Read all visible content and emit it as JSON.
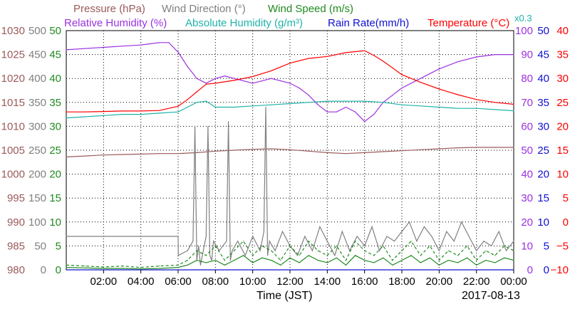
{
  "chart_data": {
    "type": "line",
    "legend": {
      "row1": [
        {
          "key": "pressure",
          "label": "Pressure (hPa)",
          "color": "#9b5a5a"
        },
        {
          "key": "wind_dir",
          "label": "Wind Direction (°)",
          "color": "#808080"
        },
        {
          "key": "wind_speed",
          "label": "Wind Speed (m/s)",
          "color": "#1f8a1f"
        }
      ],
      "row2": [
        {
          "key": "rh",
          "label": "Relative Humidity (%)",
          "color": "#9b30e0"
        },
        {
          "key": "ah",
          "label": "Absolute Humidity (g/m³)",
          "color": "#20b2aa"
        },
        {
          "key": "rain",
          "label": "Rain Rate(mm/h)",
          "color": "#1010d0"
        },
        {
          "key": "temp",
          "label": "Temperature (°C)",
          "color": "#ff0000"
        }
      ],
      "ah_multiplier": "x0.3"
    },
    "xlabel": "Time (JST)",
    "date_label": "2017-08-13",
    "x_ticks": [
      "02:00",
      "04:00",
      "06:00",
      "08:00",
      "10:00",
      "12:00",
      "14:00",
      "16:00",
      "18:00",
      "20:00",
      "22:00",
      "00:00"
    ],
    "x_range_hours": [
      0,
      24
    ],
    "axes": {
      "pressure": {
        "ticks": [
          "1030",
          "1025",
          "1020",
          "1015",
          "1010",
          "1005",
          "1000",
          "995",
          "990",
          "985",
          "980"
        ],
        "range": [
          980,
          1030
        ]
      },
      "wind_dir": {
        "ticks": [
          "500",
          "450",
          "400",
          "350",
          "300",
          "250",
          "200",
          "150",
          "100",
          "50",
          "0"
        ],
        "range": [
          0,
          500
        ]
      },
      "wind_speed": {
        "ticks": [
          "50",
          "45",
          "40",
          "35",
          "30",
          "25",
          "20",
          "15",
          "10",
          "5",
          "0"
        ],
        "range": [
          0,
          50
        ]
      },
      "rh": {
        "ticks": [
          "100",
          "90",
          "80",
          "70",
          "60",
          "50",
          "40",
          "30",
          "20",
          "10",
          "0"
        ],
        "range": [
          0,
          100
        ]
      },
      "rain": {
        "ticks": [
          "50",
          "45",
          "40",
          "35",
          "30",
          "25",
          "20",
          "15",
          "10",
          "5",
          "0"
        ],
        "range": [
          0,
          50
        ]
      },
      "temp": {
        "ticks": [
          "40",
          "35",
          "30",
          "25",
          "20",
          "15",
          "10",
          "5",
          "0",
          "−5",
          "−10"
        ],
        "range": [
          -10,
          40
        ]
      }
    },
    "series": [
      {
        "key": "pressure",
        "color": "#9b5a5a",
        "scale": "pressure",
        "dash": "",
        "x": [
          0,
          1,
          2,
          3,
          4,
          5,
          6,
          7,
          8,
          9,
          10,
          11,
          12,
          13,
          14,
          15,
          16,
          17,
          18,
          19,
          20,
          21,
          22,
          23,
          24
        ],
        "y": [
          1003.6,
          1003.8,
          1004.0,
          1004.1,
          1004.2,
          1004.3,
          1004.3,
          1004.5,
          1004.8,
          1005.0,
          1005.2,
          1005.3,
          1005.1,
          1004.8,
          1004.5,
          1004.3,
          1004.5,
          1004.7,
          1004.9,
          1005.1,
          1005.3,
          1005.5,
          1005.6,
          1005.6,
          1005.6
        ]
      },
      {
        "key": "rh",
        "color": "#9b30e0",
        "scale": "rh",
        "dash": "",
        "x": [
          0,
          1,
          2,
          3,
          4,
          4.5,
          5,
          5.5,
          6,
          6.5,
          7,
          7.5,
          8,
          8.5,
          9,
          9.5,
          10,
          10.5,
          11,
          11.5,
          12,
          12.5,
          13,
          13.5,
          14,
          14.5,
          15,
          15.5,
          16,
          16.5,
          17,
          17.5,
          18,
          19,
          20,
          21,
          22,
          23,
          24
        ],
        "y": [
          92,
          92.5,
          93,
          93.5,
          94,
          94.5,
          95,
          95,
          91,
          85,
          80,
          78,
          80,
          81,
          80,
          79,
          78,
          79,
          80,
          79,
          78,
          76,
          73,
          69,
          66,
          66,
          68,
          66,
          62,
          65,
          70,
          73,
          76,
          80,
          84,
          87,
          89,
          90,
          90
        ]
      },
      {
        "key": "temp",
        "color": "#ff0000",
        "scale": "temp",
        "dash": "",
        "x": [
          0,
          1,
          2,
          3,
          4,
          5,
          6,
          6.5,
          7,
          7.5,
          8,
          9,
          10,
          11,
          12,
          13,
          14,
          15,
          16,
          16.5,
          17,
          17.5,
          18,
          19,
          20,
          21,
          22,
          23,
          24
        ],
        "y": [
          23.0,
          23.0,
          23.1,
          23.2,
          23.2,
          23.3,
          24.2,
          25.6,
          27.2,
          28.8,
          29.0,
          29.6,
          30.4,
          31.6,
          33.2,
          34.2,
          34.6,
          35.4,
          35.8,
          34.8,
          33.6,
          32.2,
          30.8,
          29.2,
          27.8,
          26.6,
          25.6,
          25.0,
          24.6
        ]
      },
      {
        "key": "ah",
        "color": "#20b2aa",
        "scale": "rh",
        "dash": "",
        "x": [
          0,
          1,
          2,
          3,
          4,
          5,
          6,
          6.5,
          7,
          7.5,
          8,
          9,
          10,
          11,
          12,
          13,
          14,
          15,
          16,
          17,
          18,
          19,
          20,
          21,
          22,
          23,
          24
        ],
        "y": [
          63.5,
          64,
          64.5,
          65,
          65,
          65.5,
          66,
          68,
          70,
          70.5,
          68,
          68,
          68.5,
          69,
          69.5,
          70,
          70.5,
          70.5,
          70.5,
          70,
          69,
          68.5,
          68,
          67.5,
          67.5,
          67,
          66.5
        ]
      },
      {
        "key": "wind_dir",
        "color": "#808080",
        "scale": "wind_dir",
        "dash": "",
        "x": [
          0,
          6,
          6.01,
          6.5,
          6.8,
          6.9,
          7.0,
          7.1,
          7.2,
          7.5,
          7.6,
          7.7,
          7.8,
          7.9,
          8.2,
          8.6,
          8.7,
          8.8,
          8.9,
          9.2,
          9.6,
          10.0,
          10.4,
          10.6,
          10.7,
          10.8,
          10.9,
          11.2,
          11.6,
          12.0,
          12.4,
          12.8,
          13.2,
          13.6,
          14.0,
          14.4,
          14.8,
          15.2,
          15.6,
          16.0,
          16.4,
          16.8,
          17.2,
          17.6,
          18.0,
          18.4,
          18.8,
          19.2,
          19.6,
          20.0,
          20.4,
          20.8,
          21.2,
          21.6,
          22.0,
          22.4,
          22.8,
          23.2,
          23.6,
          24
        ],
        "y": [
          70,
          70,
          30,
          40,
          60,
          300,
          20,
          50,
          10,
          70,
          300,
          30,
          20,
          60,
          40,
          60,
          310,
          20,
          40,
          60,
          30,
          70,
          40,
          80,
          340,
          30,
          60,
          40,
          80,
          50,
          30,
          70,
          40,
          90,
          60,
          30,
          80,
          40,
          70,
          50,
          90,
          40,
          70,
          60,
          80,
          100,
          60,
          90,
          70,
          40,
          80,
          60,
          100,
          70,
          40,
          60,
          50,
          80,
          40,
          60
        ]
      },
      {
        "key": "wind_speed",
        "color": "#1f8a1f",
        "scale": "wind_speed",
        "dash": "4,3",
        "x": [
          0,
          1,
          2,
          3,
          4,
          5,
          6,
          6.5,
          7,
          7.5,
          8,
          8.5,
          9,
          9.5,
          10,
          10.5,
          11,
          11.5,
          12,
          12.5,
          13,
          13.5,
          14,
          14.5,
          15,
          15.5,
          16,
          16.5,
          17,
          17.5,
          18,
          18.5,
          19,
          19.5,
          20,
          20.5,
          21,
          21.5,
          22,
          22.5,
          23,
          23.5,
          24
        ],
        "y": [
          1,
          0.8,
          0.6,
          0.8,
          0.5,
          0.8,
          1,
          2,
          4,
          3,
          5,
          2,
          4,
          6,
          3,
          5,
          4,
          2,
          5,
          3,
          6,
          4,
          3,
          5,
          2,
          6,
          4,
          3,
          5,
          2,
          4,
          6,
          3,
          5,
          2,
          4,
          3,
          5,
          2,
          4,
          3,
          5,
          4
        ]
      },
      {
        "key": "wind_speed_solid",
        "color": "#1f8a1f",
        "scale": "wind_speed",
        "dash": "",
        "x": [
          0,
          1,
          2,
          3,
          4,
          5,
          6,
          6.5,
          7,
          7.5,
          8,
          8.5,
          9,
          9.5,
          10,
          10.5,
          11,
          11.5,
          12,
          12.5,
          13,
          13.5,
          14,
          14.5,
          15,
          15.5,
          16,
          16.5,
          17,
          17.5,
          18,
          18.5,
          19,
          19.5,
          20,
          20.5,
          21,
          21.5,
          22,
          22.5,
          23,
          23.5,
          24
        ],
        "y": [
          0.5,
          0.4,
          0.3,
          0.3,
          0.2,
          0.3,
          0.5,
          1,
          2,
          1.5,
          2,
          1,
          2,
          3,
          1.5,
          2.5,
          2,
          1,
          2.5,
          1.5,
          3,
          2,
          1.5,
          2.5,
          1,
          3,
          2,
          1.5,
          2.5,
          1,
          2,
          3,
          1.5,
          2.5,
          1,
          2,
          1.5,
          2.5,
          1,
          2,
          1.5,
          2.5,
          2
        ]
      },
      {
        "key": "rain",
        "color": "#1010d0",
        "scale": "rain",
        "dash": "",
        "x": [
          0,
          24
        ],
        "y": [
          0,
          0
        ]
      }
    ]
  }
}
